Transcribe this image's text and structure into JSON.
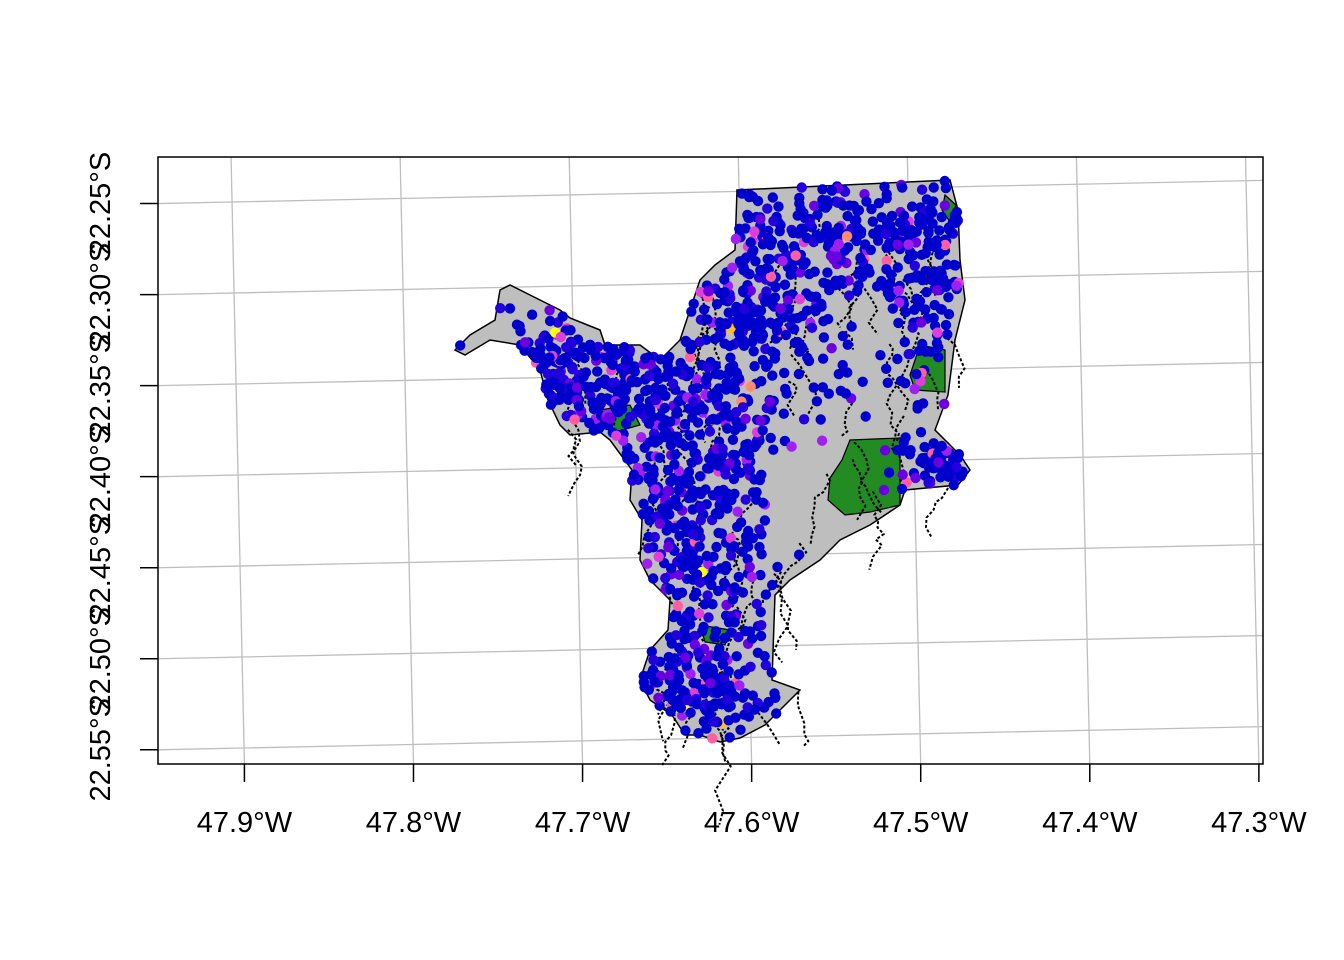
{
  "map": {
    "projection_note": "",
    "x_ticks": [
      {
        "value": -47.9,
        "label": "47.9°W"
      },
      {
        "value": -47.8,
        "label": "47.8°W"
      },
      {
        "value": -47.7,
        "label": "47.7°W"
      },
      {
        "value": -47.6,
        "label": "47.6°W"
      },
      {
        "value": -47.5,
        "label": "47.5°W"
      },
      {
        "value": -47.4,
        "label": "47.4°W"
      },
      {
        "value": -47.3,
        "label": "47.3°W"
      }
    ],
    "y_ticks": [
      {
        "value": -22.25,
        "label": "22.25°S"
      },
      {
        "value": -22.3,
        "label": "22.30°S"
      },
      {
        "value": -22.35,
        "label": "22.35°S"
      },
      {
        "value": -22.4,
        "label": "22.40°S"
      },
      {
        "value": -22.45,
        "label": "22.45°S"
      },
      {
        "value": -22.5,
        "label": "22.50°S"
      },
      {
        "value": -22.55,
        "label": "22.55°S"
      }
    ],
    "colors": {
      "region_fill": "#bebebe",
      "protected_fill": "#228b22",
      "graticule": "#bebebe",
      "point_palette": [
        "#0000cc",
        "#2200dd",
        "#6a00e0",
        "#a020f0",
        "#dd40d8",
        "#ff5fa0",
        "#ff8c69",
        "#ffc020",
        "#ffff00"
      ]
    }
  }
}
